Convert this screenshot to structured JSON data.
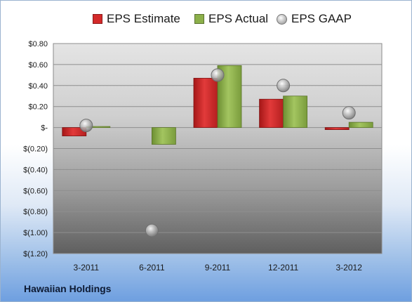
{
  "chart_data": {
    "type": "bar",
    "categories": [
      "3-2011",
      "6-2011",
      "9-2011",
      "12-2011",
      "3-2012"
    ],
    "series": [
      {
        "name": "EPS Estimate",
        "kind": "bar",
        "color": "#d42a2a",
        "values": [
          -0.08,
          null,
          0.47,
          0.27,
          -0.02
        ]
      },
      {
        "name": "EPS Actual",
        "kind": "bar",
        "color": "#8cb04a",
        "values": [
          0.01,
          -0.16,
          0.59,
          0.3,
          0.05
        ]
      },
      {
        "name": "EPS GAAP",
        "kind": "marker",
        "color": "#a0a0a0",
        "values": [
          0.02,
          -0.98,
          0.5,
          0.4,
          0.14
        ]
      }
    ],
    "ylim": [
      -1.2,
      0.8
    ],
    "yticks": [
      0.8,
      0.6,
      0.4,
      0.2,
      0,
      -0.2,
      -0.4,
      -0.6,
      -0.8,
      -1.0,
      -1.2
    ],
    "ytick_labels": [
      "$0.80",
      "$0.60",
      "$0.40",
      "$0.20",
      "$-",
      "$(0.20)",
      "$(0.40)",
      "$(0.60)",
      "$(0.80)",
      "$(1.00)",
      "$(1.20)"
    ],
    "legend_position": "top",
    "grid": true
  },
  "footer": {
    "company": "Hawaiian Holdings"
  }
}
